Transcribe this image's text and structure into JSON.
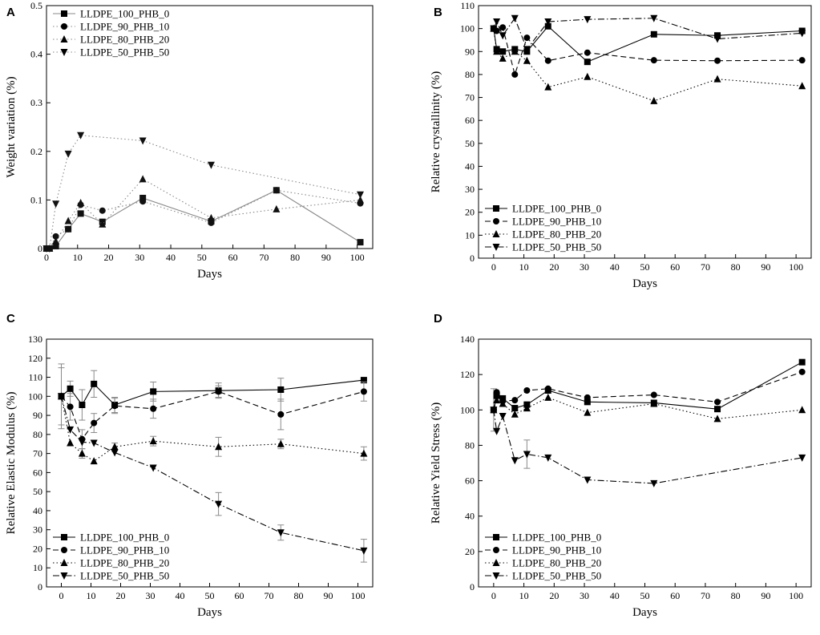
{
  "figure": {
    "panels": [
      "A",
      "B",
      "C",
      "D"
    ]
  },
  "chart_data": [
    {
      "type": "line",
      "panel_label": "A",
      "title": "",
      "xlabel": "Days",
      "ylabel": "Weight variation (%)",
      "xlim": [
        0,
        105
      ],
      "ylim": [
        0,
        0.5
      ],
      "xticks": [
        0,
        10,
        20,
        30,
        40,
        50,
        60,
        70,
        80,
        90,
        100
      ],
      "yticks": [
        0,
        0.1,
        0.2,
        0.3,
        0.4,
        0.5
      ],
      "ytick_labels": [
        "0",
        "0.1",
        "0.2",
        "0.3",
        "0.4",
        "0.5"
      ],
      "legend_position": "top-left",
      "line_color": "#888888",
      "series": [
        {
          "name": "LLDPE_100_PHB_0",
          "marker": "square",
          "dash": "solid",
          "x": [
            0,
            1,
            3,
            7,
            11,
            18,
            31,
            53,
            74,
            101
          ],
          "y": [
            0,
            0,
            0.005,
            0.04,
            0.072,
            0.055,
            0.104,
            0.056,
            0.12,
            0.013
          ]
        },
        {
          "name": "LLDPE_90_PHB_10",
          "marker": "circle",
          "dash": "dotted",
          "x": [
            0,
            1,
            3,
            7,
            11,
            18,
            31,
            53,
            74,
            101
          ],
          "y": [
            0,
            0,
            0.025,
            0.04,
            0.09,
            0.078,
            0.097,
            0.053,
            0.12,
            0.093
          ]
        },
        {
          "name": "LLDPE_80_PHB_20",
          "marker": "triangle-up",
          "dash": "dotted",
          "x": [
            0,
            1,
            3,
            7,
            11,
            18,
            31,
            53,
            74,
            101
          ],
          "y": [
            0,
            0,
            0.015,
            0.057,
            0.094,
            0.05,
            0.143,
            0.063,
            0.081,
            0.1
          ]
        },
        {
          "name": "LLDPE_50_PHB_50",
          "marker": "triangle-down",
          "dash": "dotted",
          "x": [
            0,
            1,
            3,
            7,
            11,
            31,
            53,
            101
          ],
          "y": [
            0,
            0,
            0.092,
            0.195,
            0.233,
            0.222,
            0.172,
            0.111
          ]
        }
      ]
    },
    {
      "type": "line",
      "panel_label": "B",
      "title": "",
      "xlabel": "Days",
      "ylabel": "Relative crystallinity (%)",
      "xlim": [
        -5,
        105
      ],
      "ylim": [
        0,
        110
      ],
      "xticks": [
        0,
        10,
        20,
        30,
        40,
        50,
        60,
        70,
        80,
        90,
        100
      ],
      "yticks": [
        0,
        10,
        20,
        30,
        40,
        50,
        60,
        70,
        80,
        90,
        100,
        110
      ],
      "legend_position": "bottom-left",
      "line_color": "#000000",
      "series": [
        {
          "name": "LLDPE_100_PHB_0",
          "marker": "square",
          "dash": "solid",
          "x": [
            0,
            1,
            3,
            7,
            11,
            18,
            31,
            53,
            74,
            102
          ],
          "y": [
            100,
            91,
            90,
            91,
            90,
            101,
            85.5,
            97.5,
            97,
            99
          ]
        },
        {
          "name": "LLDPE_90_PHB_10",
          "marker": "circle",
          "dash": "dashed",
          "x": [
            0,
            1,
            3,
            7,
            11,
            18,
            31,
            53,
            74,
            102
          ],
          "y": [
            100,
            99,
            100.5,
            80,
            96,
            86,
            89.5,
            86.2,
            86,
            86.2
          ]
        },
        {
          "name": "LLDPE_80_PHB_20",
          "marker": "triangle-up",
          "dash": "dotted",
          "x": [
            0,
            1,
            3,
            7,
            11,
            18,
            31,
            53,
            74,
            102
          ],
          "y": [
            100,
            90,
            87,
            90,
            86,
            74.5,
            79,
            68.5,
            78,
            75
          ]
        },
        {
          "name": "LLDPE_50_PHB_50",
          "marker": "triangle-down",
          "dash": "dashdot",
          "x": [
            0,
            1,
            3,
            7,
            11,
            18,
            31,
            53,
            74,
            102
          ],
          "y": [
            100,
            103,
            97,
            104.5,
            91,
            103,
            104,
            104.5,
            95.5,
            98
          ]
        }
      ]
    },
    {
      "type": "line",
      "panel_label": "C",
      "title": "",
      "xlabel": "Days",
      "ylabel": "Relative Elastic Modulus (%)",
      "xlim": [
        -5,
        105
      ],
      "ylim": [
        0,
        130
      ],
      "xticks": [
        0,
        10,
        20,
        30,
        40,
        50,
        60,
        70,
        80,
        90,
        100
      ],
      "yticks": [
        0,
        10,
        20,
        30,
        40,
        50,
        60,
        70,
        80,
        90,
        100,
        110,
        120,
        130
      ],
      "legend_position": "bottom-left",
      "line_color": "#000000",
      "series": [
        {
          "name": "LLDPE_100_PHB_0",
          "marker": "square",
          "dash": "solid",
          "x": [
            0,
            3,
            7,
            11,
            18,
            31,
            53,
            74,
            102
          ],
          "y": [
            100,
            104,
            95.5,
            106.5,
            95.5,
            102.5,
            103,
            103.5,
            108.5
          ],
          "err": [
            17,
            4,
            8,
            7,
            4,
            5,
            4,
            6,
            0
          ]
        },
        {
          "name": "LLDPE_90_PHB_10",
          "marker": "circle",
          "dash": "dashed",
          "x": [
            0,
            3,
            7,
            11,
            18,
            31,
            53,
            74,
            102
          ],
          "y": [
            100,
            94.5,
            77.5,
            86,
            95,
            93.5,
            102.5,
            90.5,
            102.5
          ],
          "err": [
            15,
            7,
            5,
            5,
            4,
            5,
            3,
            8,
            5
          ]
        },
        {
          "name": "LLDPE_80_PHB_20",
          "marker": "triangle-up",
          "dash": "dotted",
          "x": [
            0,
            3,
            7,
            11,
            18,
            31,
            53,
            74,
            102
          ],
          "y": [
            100,
            75.5,
            70,
            66,
            73.5,
            76.5,
            73.5,
            75,
            70
          ],
          "err": [
            0,
            0,
            2.5,
            0,
            2,
            2.5,
            5,
            2.5,
            3.5
          ]
        },
        {
          "name": "LLDPE_50_PHB_50",
          "marker": "triangle-down",
          "dash": "dashdot",
          "x": [
            0,
            3,
            7,
            11,
            18,
            31,
            53,
            74,
            102
          ],
          "y": [
            100,
            82.5,
            76,
            75.5,
            70.5,
            62.5,
            43.5,
            28.5,
            19
          ],
          "err": [
            0,
            0,
            0,
            0,
            0,
            0,
            6,
            4,
            6
          ]
        }
      ]
    },
    {
      "type": "line",
      "panel_label": "D",
      "title": "",
      "xlabel": "Days",
      "ylabel": "Relative Yield Stress (%)",
      "xlim": [
        -5,
        105
      ],
      "ylim": [
        0,
        140
      ],
      "xticks": [
        0,
        10,
        20,
        30,
        40,
        50,
        60,
        70,
        80,
        90,
        100
      ],
      "yticks": [
        0,
        20,
        40,
        60,
        80,
        100,
        120,
        140
      ],
      "legend_position": "bottom-left",
      "line_color": "#000000",
      "series": [
        {
          "name": "LLDPE_100_PHB_0",
          "marker": "square",
          "dash": "solid",
          "x": [
            0,
            1,
            3,
            7,
            11,
            18,
            31,
            53,
            74,
            102
          ],
          "y": [
            100,
            108,
            106.5,
            101,
            103,
            111,
            104.5,
            104,
            100.5,
            127
          ],
          "err": [
            12,
            0,
            0,
            0,
            0,
            0,
            0,
            0,
            0,
            0
          ]
        },
        {
          "name": "LLDPE_90_PHB_10",
          "marker": "circle",
          "dash": "dashed",
          "x": [
            0,
            1,
            3,
            7,
            11,
            18,
            31,
            53,
            74,
            102
          ],
          "y": [
            100,
            110,
            105,
            105.5,
            111,
            112,
            107,
            108.5,
            104.5,
            121.5
          ],
          "err": [
            0,
            0,
            0,
            0,
            0,
            0,
            0,
            0,
            0,
            0
          ]
        },
        {
          "name": "LLDPE_80_PHB_20",
          "marker": "triangle-up",
          "dash": "dotted",
          "x": [
            0,
            1,
            3,
            7,
            11,
            18,
            31,
            53,
            74,
            102
          ],
          "y": [
            100,
            105.5,
            103.5,
            97.5,
            101,
            107,
            98.5,
            103.5,
            95,
            100
          ],
          "err": [
            0,
            0,
            0,
            0,
            0,
            0,
            0,
            0,
            0,
            0
          ]
        },
        {
          "name": "LLDPE_50_PHB_50",
          "marker": "triangle-down",
          "dash": "dashdot",
          "x": [
            0,
            1,
            3,
            7,
            11,
            18,
            31,
            53,
            102
          ],
          "y": [
            100,
            88,
            96.5,
            71.5,
            75,
            73,
            60.5,
            58.5,
            73
          ],
          "err": [
            0,
            0,
            0,
            0,
            8,
            0,
            0,
            0,
            0
          ]
        }
      ]
    }
  ]
}
